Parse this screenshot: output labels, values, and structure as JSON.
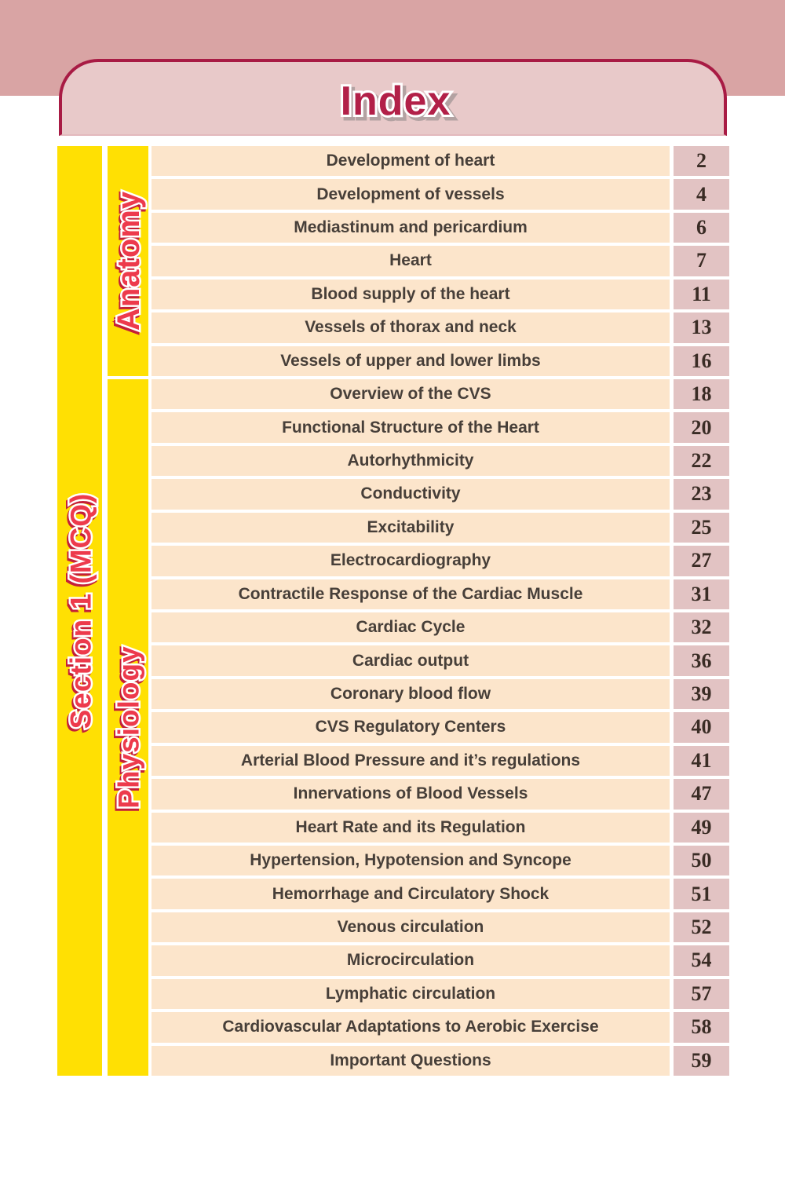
{
  "header": {
    "title": "Index"
  },
  "section_bar": {
    "label": "Section 1 (MCQ)"
  },
  "colors": {
    "band": "#d9a4a4",
    "header_fill": "#e8c9c9",
    "header_border": "#a81b44",
    "title_red": "#b22048",
    "bar_yellow": "#ffe003",
    "label_red": "#ed3a4c",
    "row_peach": "#fce5cb",
    "page_pink": "#e2c3c3"
  },
  "sections": [
    {
      "label": "Anatomy",
      "entries": [
        {
          "title": "Development of heart",
          "page": "2"
        },
        {
          "title": "Development of vessels",
          "page": "4"
        },
        {
          "title": "Mediastinum and pericardium",
          "page": "6"
        },
        {
          "title": "Heart",
          "page": "7"
        },
        {
          "title": "Blood supply of the heart",
          "page": "11"
        },
        {
          "title": "Vessels of thorax and neck",
          "page": "13"
        },
        {
          "title": "Vessels of upper and lower limbs",
          "page": "16"
        }
      ]
    },
    {
      "label": "Physiology",
      "entries": [
        {
          "title": "Overview of the CVS",
          "page": "18"
        },
        {
          "title": "Functional Structure of the Heart",
          "page": "20"
        },
        {
          "title": "Autorhythmicity",
          "page": "22"
        },
        {
          "title": "Conductivity",
          "page": "23"
        },
        {
          "title": "Excitability",
          "page": "25"
        },
        {
          "title": "Electrocardiography",
          "page": "27"
        },
        {
          "title": "Contractile Response of the Cardiac Muscle",
          "page": "31"
        },
        {
          "title": "Cardiac Cycle",
          "page": "32"
        },
        {
          "title": "Cardiac output",
          "page": "36"
        },
        {
          "title": "Coronary blood flow",
          "page": "39"
        },
        {
          "title": "CVS Regulatory Centers",
          "page": "40"
        },
        {
          "title": "Arterial Blood Pressure and it’s regulations",
          "page": "41"
        },
        {
          "title": "Innervations of Blood Vessels",
          "page": "47"
        },
        {
          "title": "Heart Rate and its Regulation",
          "page": "49"
        },
        {
          "title": "Hypertension, Hypotension and Syncope",
          "page": "50"
        },
        {
          "title": "Hemorrhage and Circulatory Shock",
          "page": "51"
        },
        {
          "title": "Venous circulation",
          "page": "52"
        },
        {
          "title": "Microcirculation",
          "page": "54"
        },
        {
          "title": "Lymphatic circulation",
          "page": "57"
        },
        {
          "title": "Cardiovascular Adaptations to Aerobic Exercise",
          "page": "58"
        },
        {
          "title": "Important Questions",
          "page": "59"
        }
      ]
    }
  ]
}
